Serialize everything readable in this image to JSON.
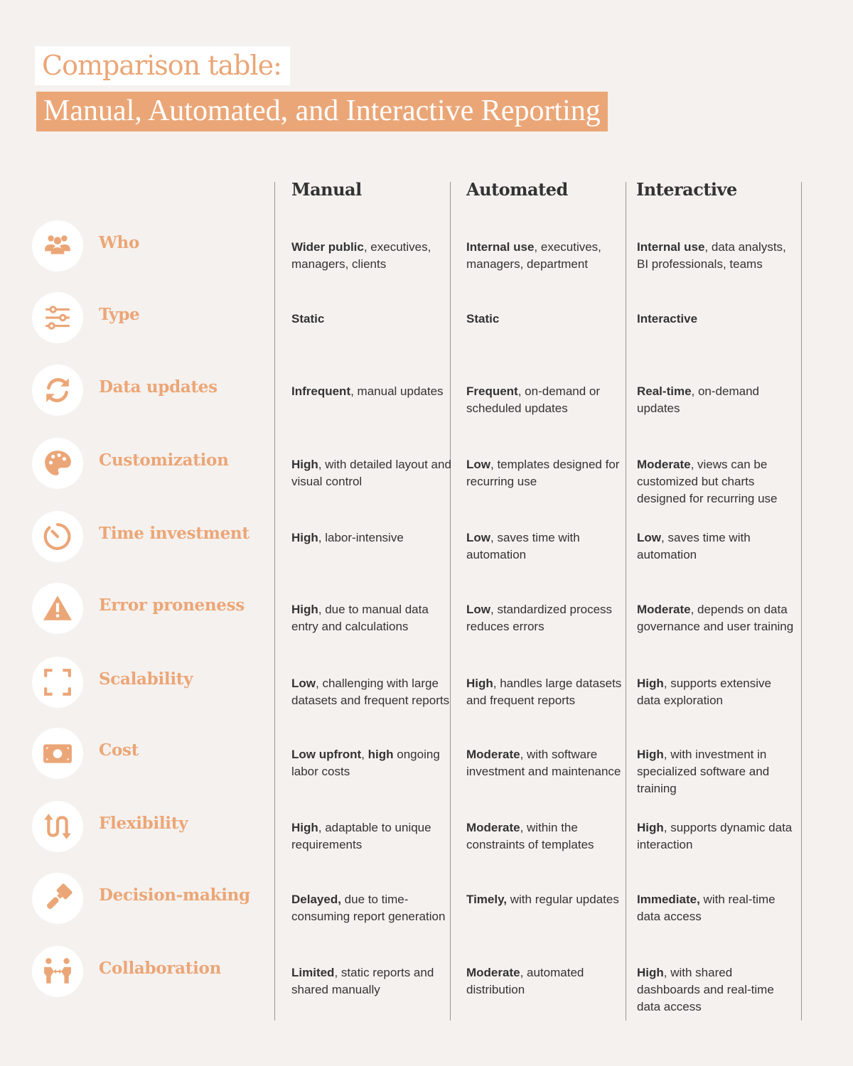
{
  "title": {
    "line1": "Comparison table:",
    "line2": "Manual, Automated, and Interactive Reporting"
  },
  "accent": "#eba677",
  "columns": [
    "Manual",
    "Automated",
    "Interactive"
  ],
  "rows": [
    {
      "label": "Who",
      "icon": "people-group-icon",
      "cells": [
        [
          [
            "b",
            "Wider public"
          ],
          [
            "",
            ", executives, managers, clients"
          ]
        ],
        [
          [
            "b",
            "Internal use"
          ],
          [
            "",
            ", executives, managers, department"
          ]
        ],
        [
          [
            "b",
            "Internal use"
          ],
          [
            "",
            ", data analysts, BI professionals, teams"
          ]
        ]
      ]
    },
    {
      "label": "Type",
      "icon": "sliders-icon",
      "cells": [
        [
          [
            "b",
            "Static"
          ]
        ],
        [
          [
            "b",
            "Static"
          ]
        ],
        [
          [
            "b",
            "Interactive"
          ]
        ]
      ]
    },
    {
      "label": "Data updates",
      "icon": "refresh-icon",
      "cells": [
        [
          [
            "b",
            "Infrequent"
          ],
          [
            "",
            ", manual updates"
          ]
        ],
        [
          [
            "b",
            "Frequent"
          ],
          [
            "",
            ", on-demand or scheduled updates"
          ]
        ],
        [
          [
            "b",
            "Real-time"
          ],
          [
            "",
            ", on-demand updates"
          ]
        ]
      ]
    },
    {
      "label": "Customization",
      "icon": "palette-icon",
      "cells": [
        [
          [
            "b",
            "High"
          ],
          [
            "",
            ", with detailed layout and visual control"
          ]
        ],
        [
          [
            "b",
            "Low"
          ],
          [
            "",
            ", templates designed for recurring use"
          ]
        ],
        [
          [
            "b",
            "Moderate"
          ],
          [
            "",
            ", views can be customized but charts designed for recurring use"
          ]
        ]
      ]
    },
    {
      "label": "Time investment",
      "icon": "timer-icon",
      "cells": [
        [
          [
            "b",
            "High"
          ],
          [
            "",
            ", labor-intensive"
          ]
        ],
        [
          [
            "b",
            "Low"
          ],
          [
            "",
            ", saves time with automation"
          ]
        ],
        [
          [
            "b",
            "Low"
          ],
          [
            "",
            ", saves time with automation"
          ]
        ]
      ]
    },
    {
      "label": "Error proneness",
      "icon": "warning-icon",
      "cells": [
        [
          [
            "b",
            "High"
          ],
          [
            "",
            ", due to manual data entry and calculations"
          ]
        ],
        [
          [
            "b",
            "Low"
          ],
          [
            "",
            ", standardized process reduces errors"
          ]
        ],
        [
          [
            "b",
            "Moderate"
          ],
          [
            "",
            ", depends on data governance and user training"
          ]
        ]
      ]
    },
    {
      "label": "Scalability",
      "icon": "expand-icon",
      "cells": [
        [
          [
            "b",
            "Low"
          ],
          [
            "",
            ", challenging with large datasets and frequent reports"
          ]
        ],
        [
          [
            "b",
            "High"
          ],
          [
            "",
            ", handles large datasets and frequent reports"
          ]
        ],
        [
          [
            "b",
            "High"
          ],
          [
            "",
            ", supports extensive data exploration"
          ]
        ]
      ]
    },
    {
      "label": "Cost",
      "icon": "money-bill-icon",
      "cells": [
        [
          [
            "b",
            "Low upfront"
          ],
          [
            "",
            ", "
          ],
          [
            "b",
            "high"
          ],
          [
            "",
            " ongoing labor costs"
          ]
        ],
        [
          [
            "b",
            "Moderate"
          ],
          [
            "",
            ", with software investment and maintenance"
          ]
        ],
        [
          [
            "b",
            "High"
          ],
          [
            "",
            ", with investment in specialized software and training"
          ]
        ]
      ]
    },
    {
      "label": "Flexibility",
      "icon": "wave-arrows-icon",
      "cells": [
        [
          [
            "b",
            "High"
          ],
          [
            "",
            ", adaptable to unique requirements"
          ]
        ],
        [
          [
            "b",
            "Moderate"
          ],
          [
            "",
            ", within the constraints of templates"
          ]
        ],
        [
          [
            "b",
            "High"
          ],
          [
            "",
            ", supports dynamic data interaction"
          ]
        ]
      ]
    },
    {
      "label": "Decision-making",
      "icon": "gavel-icon",
      "cells": [
        [
          [
            "b",
            "Delayed,"
          ],
          [
            "",
            " due to time-consuming report generation"
          ]
        ],
        [
          [
            "b",
            "Timely,"
          ],
          [
            "",
            " with regular updates"
          ]
        ],
        [
          [
            "b",
            "Immediate,"
          ],
          [
            "",
            " with real-time data access"
          ]
        ]
      ]
    },
    {
      "label": "Collaboration",
      "icon": "people-exchange-icon",
      "cells": [
        [
          [
            "b",
            "Limited"
          ],
          [
            "",
            ", static reports and shared manually"
          ]
        ],
        [
          [
            "b",
            "Moderate"
          ],
          [
            "",
            ", automated distribution"
          ]
        ],
        [
          [
            "b",
            "High"
          ],
          [
            "",
            ", with shared dashboards and real-time data access"
          ]
        ]
      ]
    }
  ]
}
